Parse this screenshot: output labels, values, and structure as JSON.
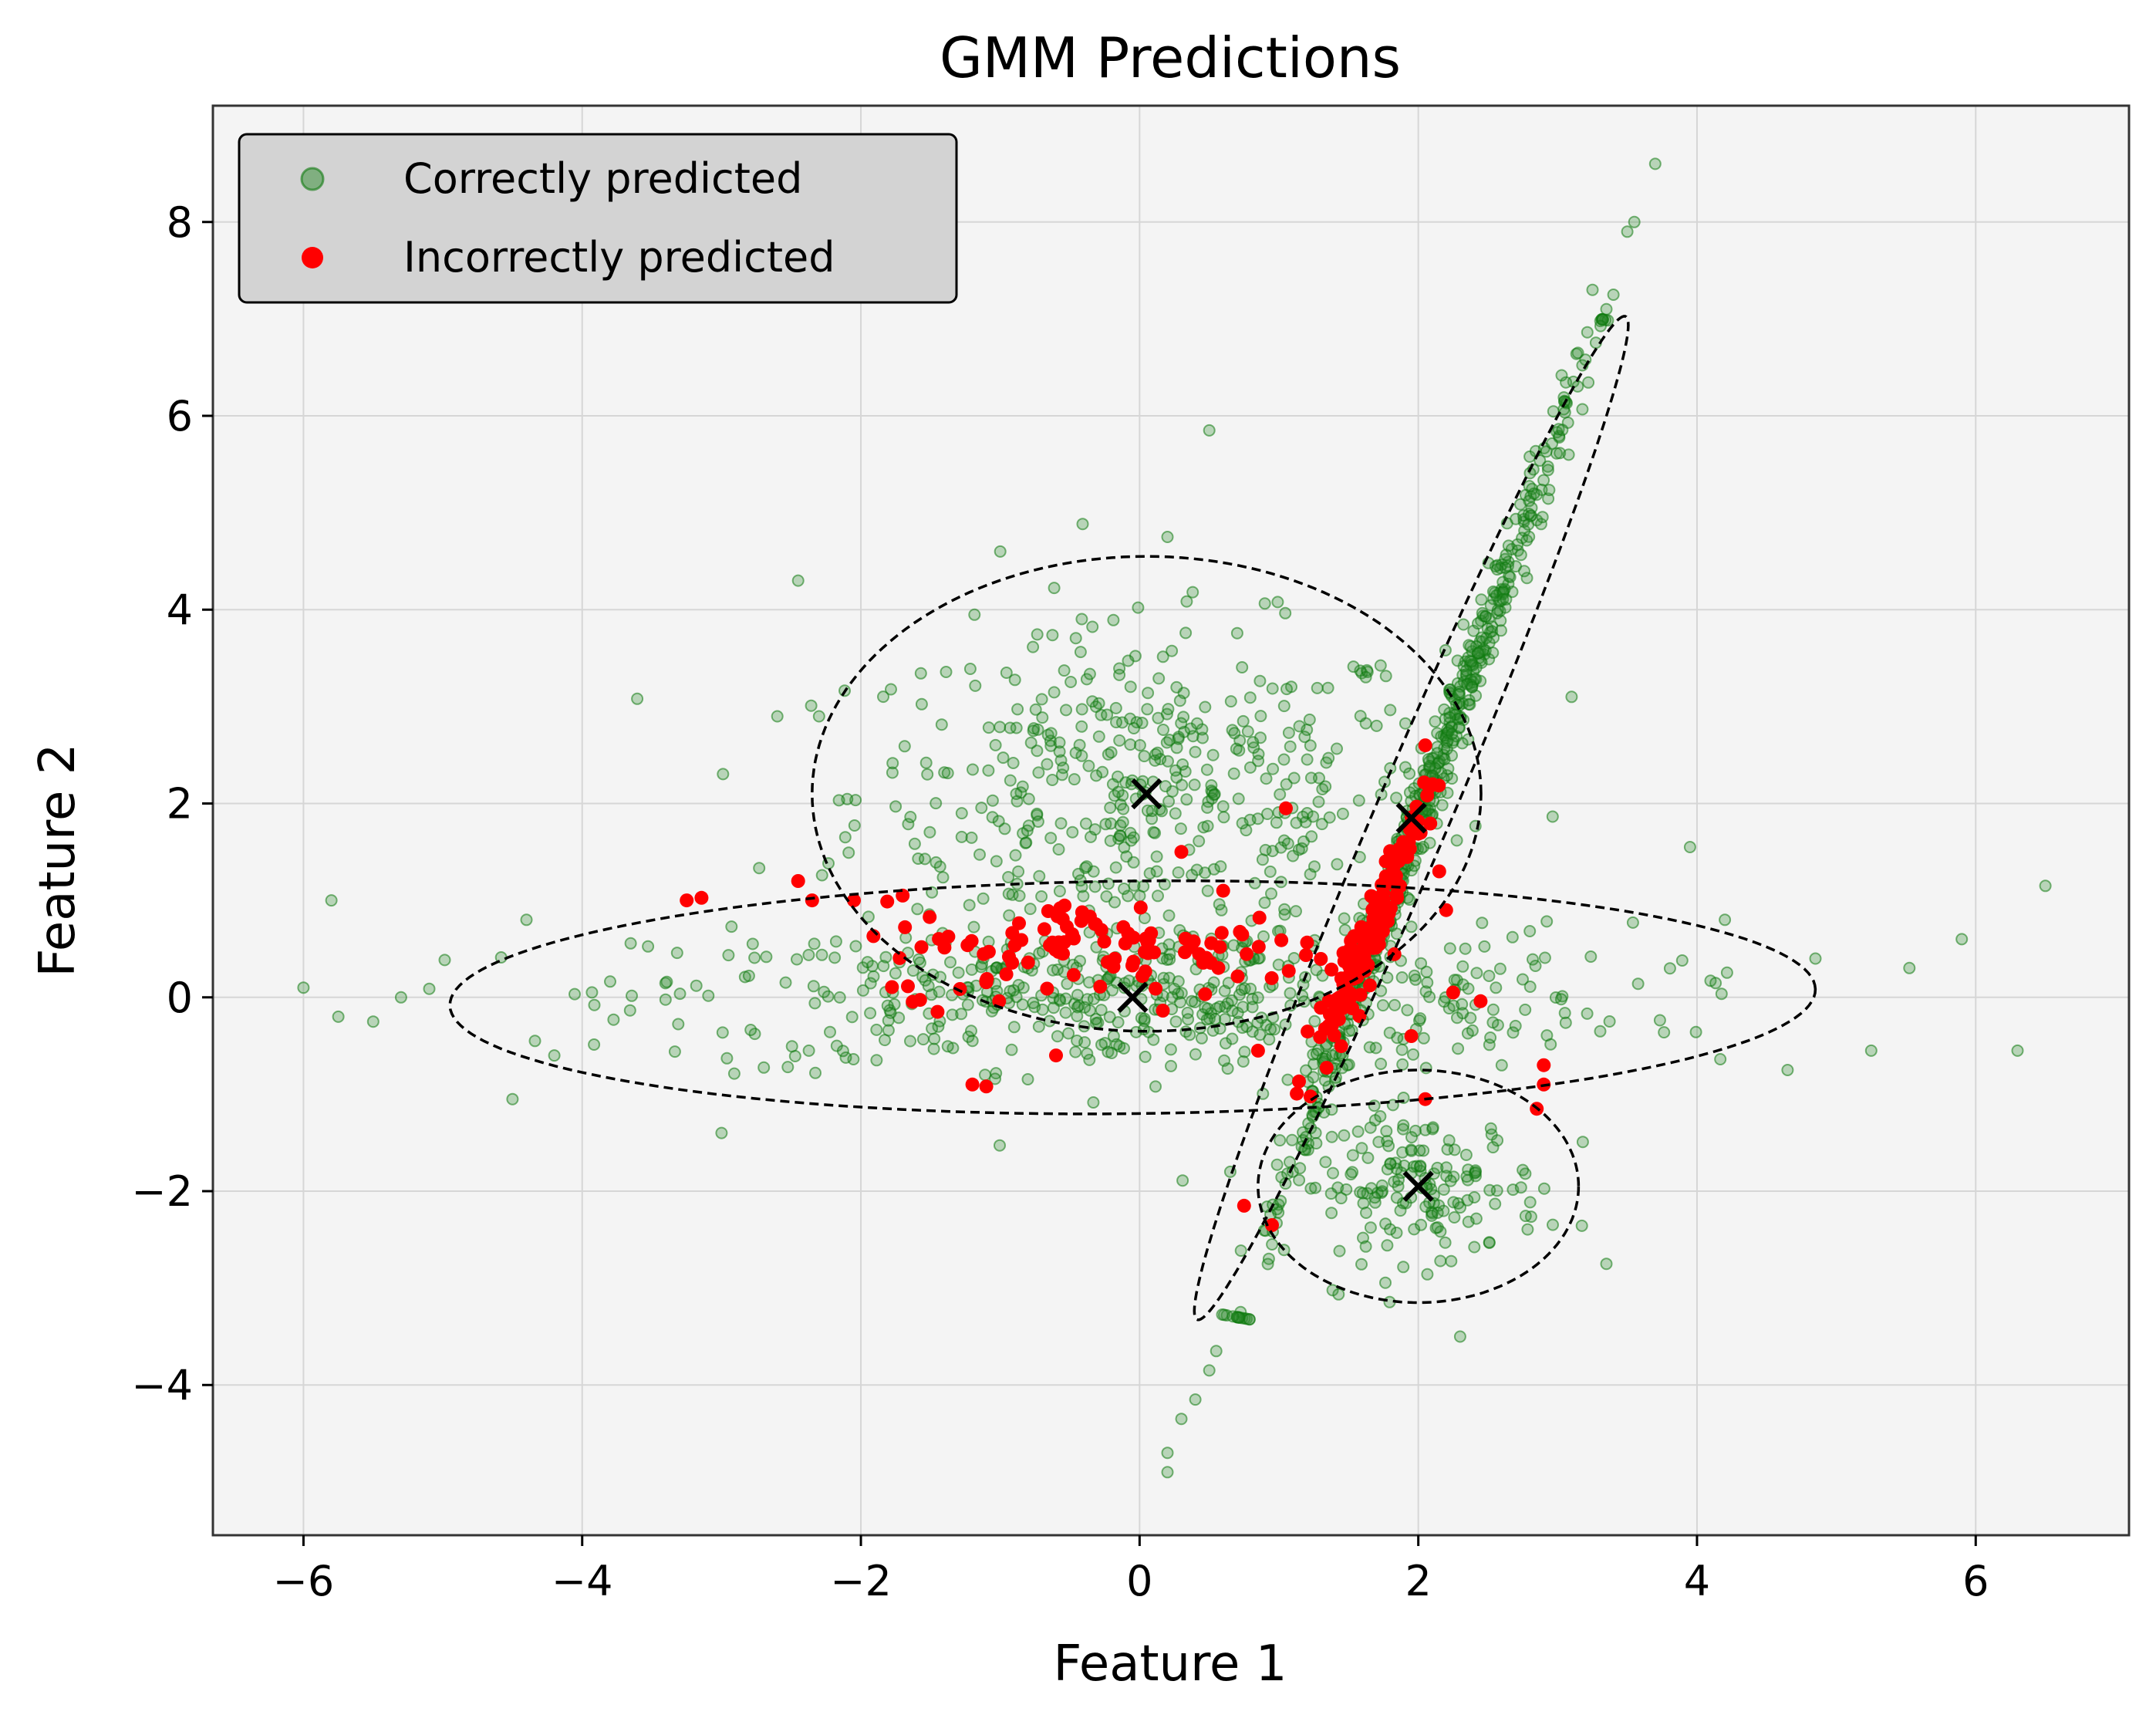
{
  "colors": {
    "background": "#ffffff",
    "plot_background": "#f4f4f4",
    "grid": "#d6d6d6",
    "correct": "#2e8b2e",
    "correct_dense": "#0f7a0f",
    "incorrect": "#ff0000",
    "ellipse": "#000000",
    "center_marker": "#000000",
    "legend_background": "#d3d3d3"
  },
  "chart_data": {
    "type": "scatter",
    "title": "GMM Predictions",
    "xlabel": "Feature 1",
    "ylabel": "Feature 2",
    "xlim": [
      -6.65,
      7.1
    ],
    "ylim": [
      -5.55,
      9.2
    ],
    "xticks": [
      -6,
      -4,
      -2,
      0,
      2,
      4,
      6
    ],
    "yticks": [
      -4,
      -2,
      0,
      2,
      4,
      6,
      8
    ],
    "xtick_labels": [
      "−6",
      "−4",
      "−2",
      "0",
      "2",
      "4",
      "6"
    ],
    "ytick_labels": [
      "−4",
      "−2",
      "0",
      "2",
      "4",
      "6",
      "8"
    ],
    "grid": true,
    "legend": {
      "position": "top-left",
      "entries": [
        {
          "label": "Correctly predicted",
          "series": "correct"
        },
        {
          "label": "Incorrectly predicted",
          "series": "incorrect"
        }
      ]
    },
    "series": [
      {
        "id": "correct",
        "name": "Correctly predicted",
        "marker": "circle",
        "alpha": 0.4,
        "clusters": [
          {
            "id": "upper-blob",
            "mean": [
              0.05,
              2.1
            ],
            "std": [
              1.05,
              0.85
            ],
            "n": 450
          },
          {
            "id": "horizontal-band",
            "mean": [
              0.0,
              0.0
            ],
            "std": [
              1.75,
              0.38
            ],
            "n": 520
          },
          {
            "id": "lower-right-blob",
            "mean": [
              2.0,
              -1.95
            ],
            "std": [
              0.45,
              0.38
            ],
            "n": 170
          },
          {
            "id": "diagonal-band",
            "from": [
              0.7,
              -3.3
            ],
            "to": [
              3.3,
              7.0
            ],
            "n": 600
          }
        ],
        "points": [
          [
            -6.0,
            0.1
          ],
          [
            -5.8,
            1.0
          ],
          [
            -5.75,
            -0.2
          ],
          [
            -5.5,
            -0.25
          ],
          [
            -5.3,
            0.0
          ],
          [
            -4.5,
            -1.05
          ],
          [
            -2.45,
            4.3
          ],
          [
            -2.6,
            2.9
          ],
          [
            -2.3,
            2.9
          ],
          [
            0.5,
            5.85
          ],
          [
            0.2,
            4.75
          ],
          [
            -1.0,
            4.6
          ],
          [
            3.7,
            8.6
          ],
          [
            3.5,
            7.9
          ],
          [
            3.55,
            8.0
          ],
          [
            3.25,
            7.3
          ],
          [
            3.35,
            7.1
          ],
          [
            3.4,
            7.25
          ],
          [
            3.1,
            3.1
          ],
          [
            3.95,
            1.55
          ],
          [
            4.2,
            0.8
          ],
          [
            4.85,
            0.4
          ],
          [
            5.9,
            0.6
          ],
          [
            6.5,
            1.15
          ],
          [
            6.3,
            -0.55
          ],
          [
            5.25,
            -0.55
          ],
          [
            4.65,
            -0.75
          ],
          [
            3.35,
            -2.75
          ],
          [
            2.3,
            -3.5
          ],
          [
            0.55,
            -3.65
          ],
          [
            0.5,
            -3.85
          ],
          [
            0.4,
            -4.15
          ],
          [
            0.3,
            -4.35
          ],
          [
            0.2,
            -4.7
          ],
          [
            0.2,
            -4.9
          ],
          [
            -3.0,
            -1.4
          ],
          [
            -4.2,
            -0.6
          ],
          [
            -4.4,
            0.8
          ]
        ]
      },
      {
        "id": "incorrect",
        "name": "Incorrectly predicted",
        "marker": "circle",
        "alpha": 1.0,
        "clusters": [
          {
            "id": "center-band",
            "mean": [
              -0.1,
              0.5
            ],
            "std": [
              0.9,
              0.25
            ],
            "n": 110
          },
          {
            "id": "diagonal-overlap",
            "from": [
              1.15,
              -1.0
            ],
            "to": [
              2.1,
              2.2
            ],
            "n": 130
          }
        ],
        "points": [
          [
            -3.25,
            1.0
          ],
          [
            -2.45,
            1.2
          ],
          [
            -2.35,
            1.0
          ],
          [
            -2.05,
            1.0
          ],
          [
            -1.7,
            1.05
          ],
          [
            -1.45,
            -0.15
          ],
          [
            -1.2,
            -0.9
          ],
          [
            -1.1,
            -0.92
          ],
          [
            -0.6,
            -0.6
          ],
          [
            0.75,
            -2.15
          ],
          [
            0.95,
            -2.35
          ],
          [
            1.05,
            1.95
          ],
          [
            2.05,
            2.6
          ],
          [
            2.15,
            1.3
          ],
          [
            2.2,
            0.9
          ],
          [
            2.25,
            0.05
          ],
          [
            2.85,
            -1.15
          ],
          [
            2.9,
            -0.9
          ],
          [
            2.9,
            -0.7
          ],
          [
            2.05,
            -1.05
          ],
          [
            0.85,
            -0.55
          ],
          [
            0.3,
            1.5
          ],
          [
            0.6,
            1.1
          ],
          [
            1.95,
            -0.4
          ]
        ]
      }
    ],
    "gmm_components": [
      {
        "center": [
          0.05,
          2.1
        ],
        "semi_axes": [
          2.4,
          2.45
        ],
        "angle_deg": 0
      },
      {
        "center": [
          -0.05,
          0.0
        ],
        "semi_axes": [
          4.9,
          1.2
        ],
        "angle_deg": 1
      },
      {
        "center": [
          1.95,
          1.85
        ],
        "semi_axes": [
          5.4,
          0.28
        ],
        "angle_deg": 73.5
      },
      {
        "center": [
          2.0,
          -1.95
        ],
        "semi_axes": [
          1.15,
          1.2
        ],
        "angle_deg": 0
      }
    ]
  }
}
